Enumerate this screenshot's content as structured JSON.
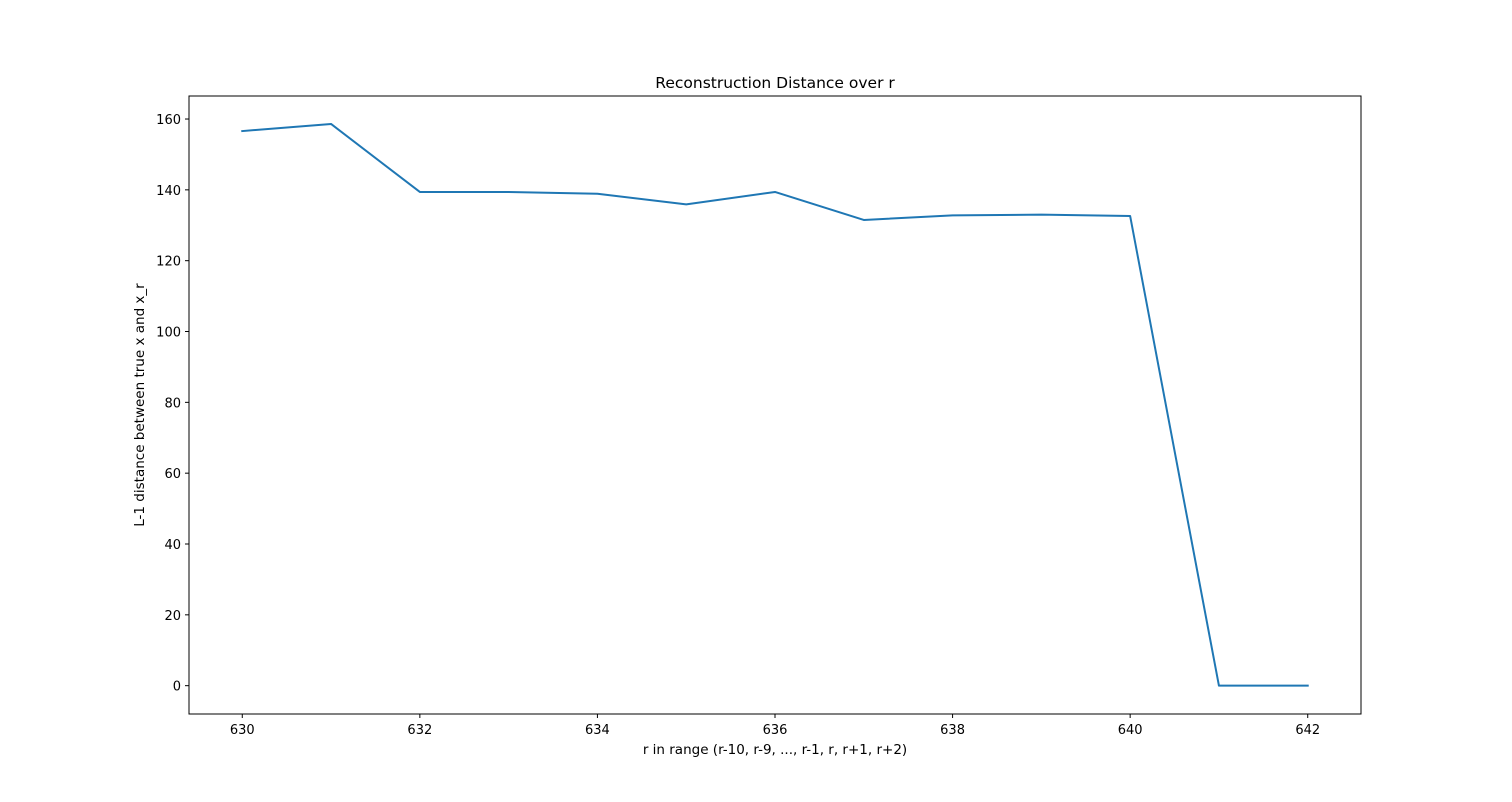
{
  "chart_data": {
    "type": "line",
    "title": "Reconstruction Distance over r",
    "xlabel": "r in range (r-10, r-9, ..., r-1, r, r+1, r+2)",
    "ylabel": "L-1 distance between true x and x_r",
    "xlim": [
      629.4,
      642.6
    ],
    "ylim": [
      -8,
      166.5
    ],
    "xticks": [
      630,
      632,
      634,
      636,
      638,
      640,
      642
    ],
    "yticks": [
      0,
      20,
      40,
      60,
      80,
      100,
      120,
      140,
      160
    ],
    "grid": false,
    "series": [
      {
        "color": "#1f77b4",
        "x": [
          630,
          631,
          632,
          633,
          634,
          635,
          636,
          637,
          638,
          639,
          640,
          641,
          642
        ],
        "y": [
          156.6,
          158.6,
          139.4,
          139.4,
          138.9,
          135.9,
          139.4,
          131.5,
          132.8,
          133.0,
          132.6,
          0.0,
          0.0
        ]
      }
    ]
  }
}
